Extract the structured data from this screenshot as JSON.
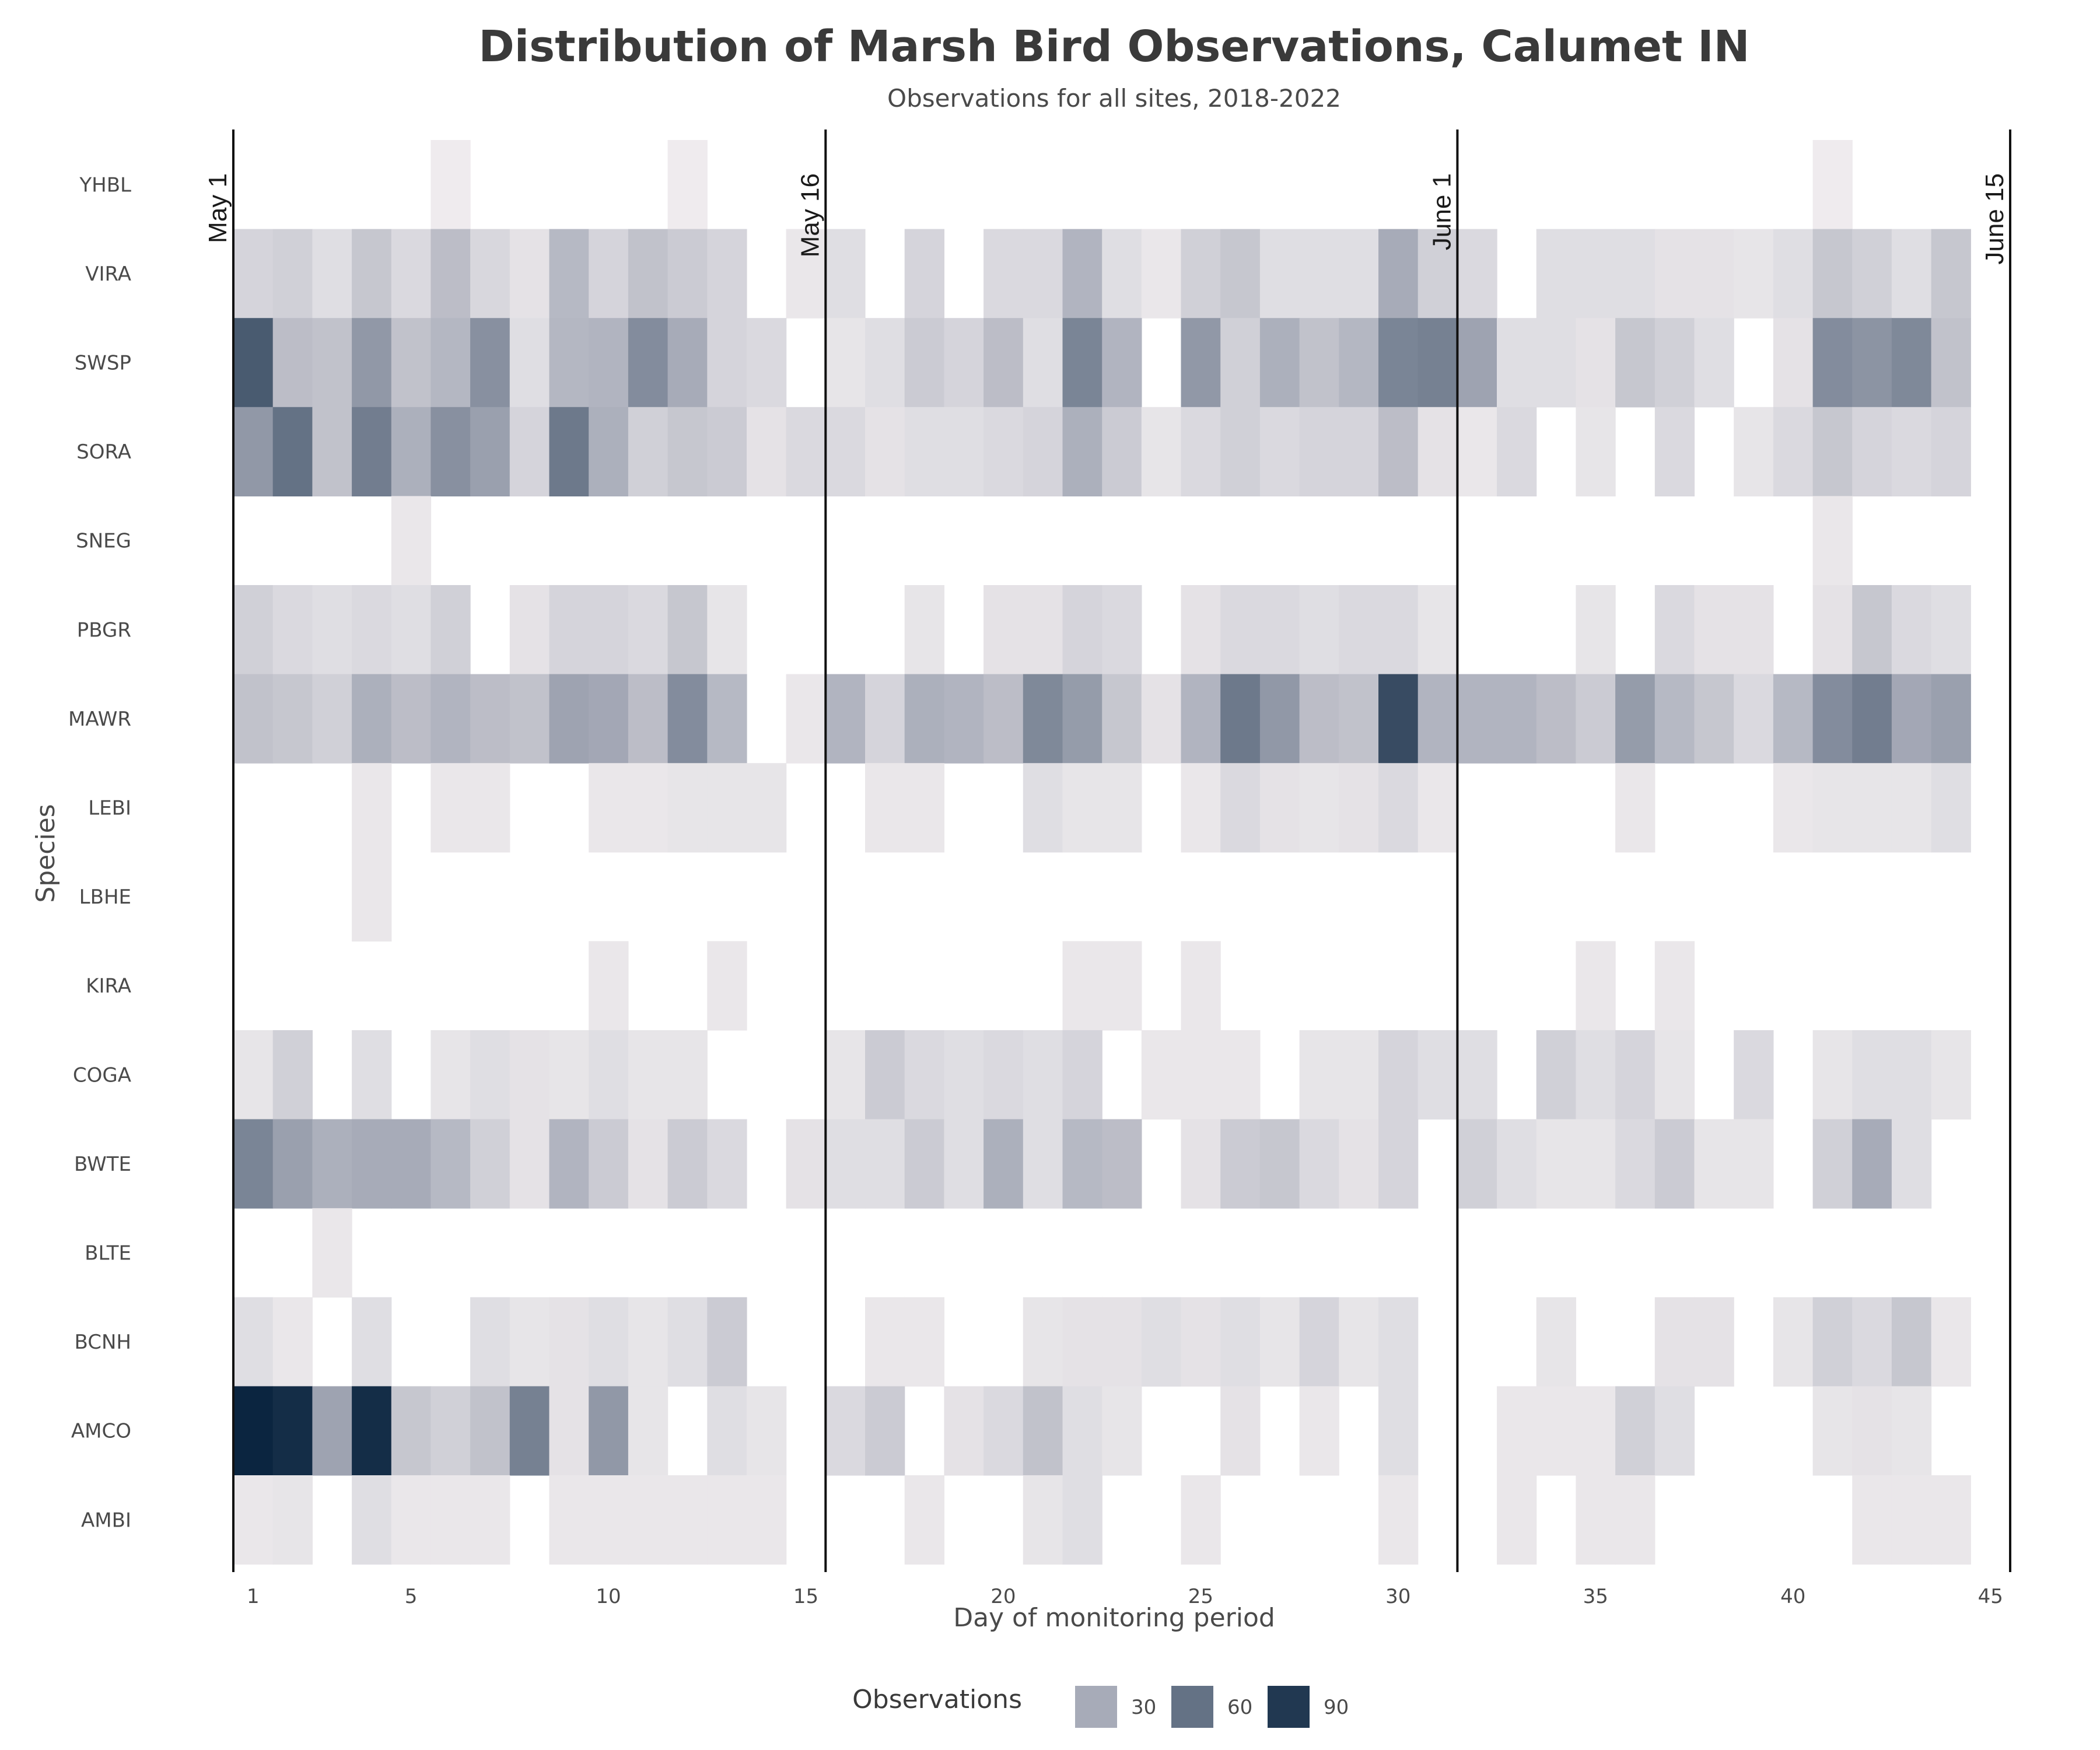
{
  "chart_data": {
    "type": "heatmap",
    "title": "Distribution of Marsh Bird Observations, Calumet IN",
    "subtitle": "Observations for all sites, 2018-2022",
    "xlabel": "Day of monitoring period",
    "ylabel": "Species",
    "xlim": [
      0.5,
      45.5
    ],
    "x_ticks": [
      1,
      5,
      10,
      15,
      20,
      25,
      30,
      35,
      40,
      45
    ],
    "y_categories": [
      "YHBL",
      "VIRA",
      "SWSP",
      "SORA",
      "SNEG",
      "PBGR",
      "MAWR",
      "LEBI",
      "LBHE",
      "KIRA",
      "COGA",
      "BWTE",
      "BLTE",
      "BCNH",
      "AMCO",
      "AMBI"
    ],
    "date_markers": [
      {
        "label": "May 1",
        "x": 0.5
      },
      {
        "label": "May 16",
        "x": 15.5
      },
      {
        "label": "June 1",
        "x": 31.5
      },
      {
        "label": "June 15",
        "x": 45.5
      }
    ],
    "color_scale": {
      "low": "#f4f0f2",
      "mid": "#a7abb8",
      "high": "#0b2540",
      "max": 100
    },
    "legend": {
      "title": "Observations",
      "entries": [
        {
          "label": "30",
          "value": 30
        },
        {
          "label": "60",
          "value": 60
        },
        {
          "label": "90",
          "value": 90
        }
      ]
    },
    "values": {
      "YHBL": [
        0,
        0,
        0,
        0,
        0,
        2,
        0,
        0,
        0,
        0,
        0,
        2,
        0,
        0,
        0,
        0,
        0,
        0,
        0,
        0,
        0,
        0,
        0,
        0,
        0,
        0,
        0,
        0,
        0,
        0,
        0,
        0,
        0,
        0,
        0,
        0,
        0,
        0,
        0,
        0,
        2,
        0,
        0,
        0,
        0
      ],
      "VIRA": [
        12,
        14,
        8,
        18,
        10,
        22,
        11,
        6,
        24,
        12,
        20,
        16,
        12,
        0,
        4,
        8,
        0,
        12,
        0,
        10,
        10,
        26,
        8,
        4,
        14,
        18,
        8,
        8,
        8,
        30,
        14,
        10,
        0,
        8,
        8,
        8,
        6,
        6,
        5,
        8,
        18,
        14,
        8,
        18,
        0
      ],
      "SWSP": [
        72,
        22,
        20,
        40,
        20,
        25,
        44,
        8,
        25,
        26,
        46,
        30,
        12,
        10,
        0,
        5,
        8,
        16,
        12,
        22,
        8,
        50,
        26,
        0,
        40,
        14,
        28,
        20,
        25,
        50,
        52,
        34,
        8,
        8,
        6,
        18,
        14,
        8,
        0,
        6,
        46,
        42,
        48,
        20,
        0
      ],
      "SORA": [
        40,
        60,
        20,
        54,
        28,
        44,
        36,
        12,
        56,
        28,
        14,
        18,
        16,
        6,
        10,
        10,
        6,
        8,
        8,
        10,
        12,
        28,
        16,
        5,
        10,
        14,
        10,
        12,
        12,
        22,
        6,
        4,
        10,
        0,
        5,
        0,
        10,
        0,
        5,
        10,
        18,
        12,
        10,
        12,
        0
      ],
      "SNEG": [
        0,
        0,
        0,
        0,
        4,
        0,
        0,
        0,
        0,
        0,
        0,
        0,
        0,
        0,
        0,
        0,
        0,
        0,
        0,
        0,
        0,
        0,
        0,
        0,
        0,
        0,
        0,
        0,
        0,
        0,
        0,
        0,
        0,
        0,
        0,
        0,
        0,
        0,
        0,
        0,
        4,
        0,
        0,
        0,
        0
      ],
      "PBGR": [
        14,
        10,
        8,
        10,
        8,
        14,
        0,
        6,
        12,
        12,
        10,
        18,
        5,
        0,
        0,
        0,
        0,
        5,
        0,
        6,
        6,
        12,
        10,
        0,
        6,
        10,
        10,
        8,
        10,
        10,
        5,
        0,
        0,
        0,
        5,
        0,
        10,
        6,
        6,
        0,
        6,
        18,
        10,
        8,
        0
      ],
      "MAWR": [
        20,
        18,
        14,
        28,
        22,
        26,
        22,
        20,
        34,
        32,
        22,
        46,
        24,
        0,
        4,
        26,
        12,
        28,
        26,
        22,
        48,
        38,
        18,
        6,
        26,
        56,
        40,
        22,
        20,
        80,
        26,
        26,
        26,
        22,
        16,
        38,
        24,
        18,
        10,
        24,
        46,
        54,
        32,
        36,
        0
      ],
      "LEBI": [
        0,
        0,
        0,
        4,
        0,
        4,
        4,
        0,
        0,
        4,
        4,
        5,
        5,
        5,
        0,
        0,
        4,
        4,
        0,
        0,
        8,
        5,
        5,
        0,
        4,
        10,
        6,
        5,
        6,
        10,
        4,
        0,
        0,
        0,
        0,
        4,
        0,
        0,
        0,
        4,
        5,
        5,
        5,
        8,
        0
      ],
      "LBHE": [
        0,
        0,
        0,
        4,
        0,
        0,
        0,
        0,
        0,
        0,
        0,
        0,
        0,
        0,
        0,
        0,
        0,
        0,
        0,
        0,
        0,
        0,
        0,
        0,
        0,
        0,
        0,
        0,
        0,
        0,
        0,
        0,
        0,
        0,
        0,
        0,
        0,
        0,
        0,
        0,
        0,
        0,
        0,
        0,
        0
      ],
      "KIRA": [
        0,
        0,
        0,
        0,
        0,
        0,
        0,
        0,
        0,
        4,
        0,
        0,
        4,
        0,
        0,
        0,
        0,
        0,
        0,
        0,
        0,
        4,
        4,
        0,
        4,
        0,
        0,
        0,
        0,
        0,
        0,
        0,
        0,
        0,
        4,
        0,
        4,
        0,
        0,
        0,
        0,
        0,
        0,
        0,
        0
      ],
      "COGA": [
        5,
        14,
        0,
        8,
        0,
        5,
        8,
        6,
        5,
        8,
        5,
        5,
        0,
        0,
        0,
        5,
        16,
        10,
        8,
        10,
        8,
        12,
        0,
        4,
        4,
        4,
        0,
        5,
        5,
        12,
        8,
        8,
        0,
        14,
        8,
        12,
        5,
        0,
        10,
        0,
        5,
        8,
        8,
        5,
        0
      ],
      "BWTE": [
        50,
        36,
        28,
        30,
        30,
        24,
        14,
        6,
        26,
        16,
        6,
        16,
        10,
        0,
        6,
        8,
        8,
        16,
        8,
        28,
        8,
        24,
        22,
        0,
        6,
        16,
        18,
        10,
        6,
        12,
        0,
        14,
        8,
        5,
        5,
        10,
        16,
        5,
        5,
        0,
        14,
        30,
        8,
        0,
        0
      ],
      "BLTE": [
        0,
        0,
        4,
        0,
        0,
        0,
        0,
        0,
        0,
        0,
        0,
        0,
        0,
        0,
        0,
        0,
        0,
        0,
        0,
        0,
        0,
        0,
        0,
        0,
        0,
        0,
        0,
        0,
        0,
        0,
        0,
        0,
        0,
        0,
        0,
        0,
        0,
        0,
        0,
        0,
        0,
        0,
        0,
        0,
        0
      ],
      "BCNH": [
        8,
        4,
        0,
        8,
        0,
        0,
        8,
        5,
        6,
        8,
        5,
        8,
        16,
        0,
        0,
        0,
        4,
        4,
        0,
        0,
        5,
        6,
        6,
        8,
        6,
        8,
        5,
        12,
        5,
        8,
        0,
        0,
        0,
        5,
        0,
        0,
        6,
        6,
        0,
        5,
        14,
        10,
        18,
        4,
        0
      ],
      "AMCO": [
        100,
        96,
        34,
        96,
        18,
        14,
        20,
        52,
        6,
        40,
        5,
        0,
        8,
        5,
        0,
        10,
        16,
        0,
        6,
        10,
        20,
        8,
        5,
        0,
        0,
        6,
        0,
        4,
        0,
        8,
        0,
        0,
        4,
        4,
        4,
        14,
        8,
        0,
        0,
        0,
        5,
        6,
        5,
        0,
        0
      ],
      "AMBI": [
        4,
        5,
        0,
        8,
        4,
        4,
        4,
        0,
        4,
        4,
        4,
        4,
        4,
        4,
        0,
        0,
        0,
        4,
        0,
        0,
        5,
        8,
        0,
        0,
        4,
        0,
        0,
        0,
        0,
        4,
        0,
        0,
        4,
        0,
        4,
        4,
        0,
        0,
        0,
        0,
        0,
        4,
        4,
        4,
        0
      ]
    }
  }
}
